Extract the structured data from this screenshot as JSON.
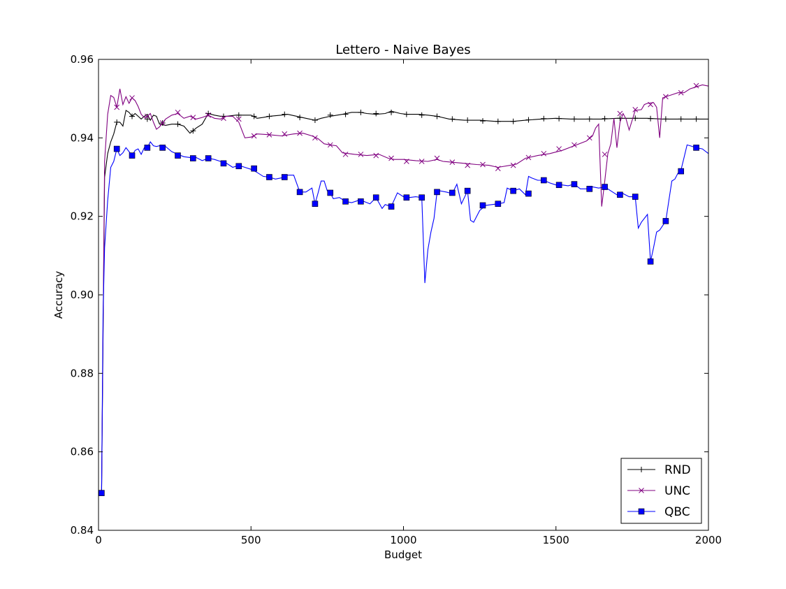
{
  "chart_data": {
    "type": "line",
    "title": "Lettero - Naive Bayes",
    "xlabel": "Budget",
    "ylabel": "Accuracy",
    "xlim": [
      0,
      2000
    ],
    "ylim": [
      0.84,
      0.96
    ],
    "xticks": [
      0,
      500,
      1000,
      1500,
      2000
    ],
    "xtick_labels": [
      "0",
      "500",
      "1000",
      "1500",
      "2000"
    ],
    "yticks": [
      0.84,
      0.86,
      0.88,
      0.9,
      0.92,
      0.94,
      0.96
    ],
    "ytick_labels": [
      "0.84",
      "0.86",
      "0.88",
      "0.90",
      "0.92",
      "0.94",
      "0.96"
    ],
    "grid": false,
    "legend_position": "bottom-right",
    "series": [
      {
        "name": "RND",
        "color": "#000000",
        "marker": "plus",
        "x": [
          10,
          20,
          30,
          40,
          50,
          60,
          70,
          80,
          90,
          100,
          110,
          120,
          130,
          140,
          150,
          160,
          170,
          180,
          190,
          200,
          220,
          240,
          260,
          280,
          300,
          310,
          320,
          340,
          360,
          380,
          400,
          420,
          450,
          500,
          520,
          540,
          560,
          600,
          620,
          650,
          680,
          710,
          730,
          760,
          800,
          830,
          860,
          880,
          910,
          940,
          960,
          990,
          1010,
          1050,
          1080,
          1110,
          1150,
          1200,
          1250,
          1300,
          1330,
          1360,
          1400,
          1450,
          1500,
          1550,
          1600,
          1650,
          1700,
          1750,
          1800,
          1850,
          1900,
          1950,
          2000
        ],
        "y": [
          0.85,
          0.93,
          0.936,
          0.939,
          0.941,
          0.944,
          0.944,
          0.943,
          0.947,
          0.9465,
          0.9455,
          0.9462,
          0.9455,
          0.9448,
          0.9455,
          0.946,
          0.9445,
          0.9458,
          0.9455,
          0.9435,
          0.9432,
          0.9435,
          0.9435,
          0.943,
          0.9412,
          0.9418,
          0.9425,
          0.9435,
          0.9462,
          0.9458,
          0.9455,
          0.9455,
          0.9458,
          0.9458,
          0.945,
          0.9452,
          0.9455,
          0.9458,
          0.946,
          0.9455,
          0.945,
          0.9445,
          0.945,
          0.9455,
          0.946,
          0.9465,
          0.9465,
          0.9462,
          0.946,
          0.9462,
          0.9468,
          0.9462,
          0.946,
          0.946,
          0.9458,
          0.9455,
          0.9448,
          0.9445,
          0.9445,
          0.9442,
          0.9442,
          0.9442,
          0.9445,
          0.9448,
          0.945,
          0.9448,
          0.9448,
          0.9448,
          0.945,
          0.945,
          0.945,
          0.9448,
          0.9448,
          0.9448,
          0.9448
        ],
        "marker_x": [
          60,
          110,
          160,
          210,
          260,
          310,
          360,
          410,
          460,
          510,
          560,
          610,
          660,
          710,
          760,
          810,
          860,
          910,
          960,
          1010,
          1060,
          1110,
          1160,
          1210,
          1260,
          1310,
          1360,
          1410,
          1460,
          1510,
          1560,
          1610,
          1660,
          1710,
          1760,
          1810,
          1860,
          1910,
          1960
        ],
        "marker_y": [
          0.944,
          0.9455,
          0.9448,
          0.9438,
          0.9435,
          0.9418,
          0.9462,
          0.9455,
          0.9458,
          0.9455,
          0.9455,
          0.946,
          0.9452,
          0.9445,
          0.9458,
          0.946,
          0.9465,
          0.9462,
          0.9465,
          0.946,
          0.9458,
          0.9455,
          0.9448,
          0.9445,
          0.9443,
          0.9442,
          0.9442,
          0.9446,
          0.9449,
          0.9449,
          0.9448,
          0.9448,
          0.9449,
          0.945,
          0.945,
          0.9449,
          0.9448,
          0.9448,
          0.9448
        ]
      },
      {
        "name": "UNC",
        "color": "#800080",
        "marker": "x",
        "x": [
          10,
          20,
          30,
          40,
          50,
          60,
          70,
          80,
          90,
          100,
          110,
          120,
          130,
          140,
          150,
          160,
          170,
          180,
          190,
          200,
          210,
          220,
          240,
          260,
          280,
          300,
          320,
          340,
          360,
          380,
          400,
          420,
          440,
          460,
          480,
          500,
          520,
          560,
          600,
          640,
          670,
          700,
          720,
          740,
          760,
          780,
          800,
          840,
          880,
          920,
          950,
          970,
          1000,
          1040,
          1080,
          1110,
          1130,
          1160,
          1200,
          1240,
          1280,
          1310,
          1350,
          1370,
          1400,
          1440,
          1480,
          1520,
          1560,
          1600,
          1620,
          1630,
          1640,
          1650,
          1660,
          1670,
          1680,
          1690,
          1700,
          1710,
          1720,
          1730,
          1740,
          1760,
          1780,
          1790,
          1800,
          1820,
          1830,
          1840,
          1850,
          1860,
          1880,
          1900,
          1920,
          1940,
          1960,
          1980,
          2000
        ],
        "y": [
          0.85,
          0.934,
          0.946,
          0.9508,
          0.9503,
          0.9478,
          0.9525,
          0.9485,
          0.9505,
          0.9488,
          0.9502,
          0.9495,
          0.948,
          0.946,
          0.9452,
          0.9455,
          0.9462,
          0.944,
          0.9422,
          0.9428,
          0.9438,
          0.9448,
          0.9458,
          0.9462,
          0.945,
          0.9455,
          0.9448,
          0.9452,
          0.9458,
          0.945,
          0.9448,
          0.9455,
          0.9455,
          0.944,
          0.94,
          0.9402,
          0.941,
          0.9408,
          0.9405,
          0.941,
          0.9412,
          0.9405,
          0.9398,
          0.9385,
          0.9382,
          0.938,
          0.9362,
          0.9358,
          0.9355,
          0.9358,
          0.9348,
          0.9345,
          0.9345,
          0.9342,
          0.934,
          0.9345,
          0.934,
          0.9338,
          0.9335,
          0.9332,
          0.933,
          0.9325,
          0.933,
          0.9333,
          0.9348,
          0.9355,
          0.936,
          0.9368,
          0.938,
          0.9392,
          0.9405,
          0.9425,
          0.9435,
          0.9225,
          0.929,
          0.936,
          0.9385,
          0.945,
          0.9375,
          0.944,
          0.9462,
          0.9448,
          0.942,
          0.947,
          0.9472,
          0.9485,
          0.9488,
          0.949,
          0.9478,
          0.94,
          0.9502,
          0.9505,
          0.951,
          0.9515,
          0.9515,
          0.9525,
          0.953,
          0.9535,
          0.9532
        ],
        "marker_x": [
          60,
          110,
          160,
          210,
          260,
          310,
          360,
          410,
          460,
          510,
          560,
          610,
          660,
          710,
          760,
          810,
          860,
          910,
          960,
          1010,
          1060,
          1110,
          1160,
          1210,
          1260,
          1310,
          1360,
          1410,
          1460,
          1510,
          1560,
          1610,
          1660,
          1710,
          1760,
          1810,
          1860,
          1910,
          1960
        ],
        "marker_y": [
          0.9478,
          0.9502,
          0.9455,
          0.9438,
          0.9465,
          0.9452,
          0.9458,
          0.945,
          0.9448,
          0.9405,
          0.9408,
          0.941,
          0.9412,
          0.94,
          0.9382,
          0.9358,
          0.9358,
          0.9355,
          0.9348,
          0.934,
          0.934,
          0.9348,
          0.9338,
          0.933,
          0.9332,
          0.9322,
          0.933,
          0.935,
          0.936,
          0.9372,
          0.9382,
          0.94,
          0.9358,
          0.9462,
          0.9472,
          0.9485,
          0.9505,
          0.9515,
          0.9533
        ]
      },
      {
        "name": "QBC",
        "color": "#0000ff",
        "marker": "square",
        "x": [
          10,
          15,
          20,
          25,
          30,
          40,
          50,
          60,
          70,
          80,
          90,
          100,
          110,
          120,
          130,
          140,
          150,
          160,
          170,
          180,
          190,
          200,
          210,
          220,
          240,
          260,
          280,
          300,
          320,
          340,
          360,
          380,
          400,
          420,
          440,
          460,
          480,
          500,
          520,
          540,
          560,
          580,
          600,
          620,
          640,
          660,
          680,
          700,
          710,
          720,
          730,
          740,
          750,
          760,
          770,
          790,
          810,
          830,
          850,
          870,
          890,
          910,
          930,
          940,
          960,
          980,
          1000,
          1020,
          1040,
          1060,
          1070,
          1080,
          1090,
          1100,
          1110,
          1120,
          1140,
          1160,
          1175,
          1190,
          1210,
          1220,
          1230,
          1250,
          1270,
          1290,
          1310,
          1330,
          1340,
          1360,
          1380,
          1400,
          1410,
          1420,
          1440,
          1460,
          1480,
          1500,
          1520,
          1540,
          1560,
          1580,
          1600,
          1620,
          1640,
          1660,
          1680,
          1700,
          1720,
          1740,
          1760,
          1770,
          1780,
          1800,
          1810,
          1820,
          1830,
          1840,
          1860,
          1870,
          1880,
          1890,
          1900,
          1910,
          1920,
          1930,
          1940,
          1960,
          1980,
          2000
        ],
        "y": [
          0.8495,
          0.895,
          0.912,
          0.918,
          0.924,
          0.9325,
          0.934,
          0.9372,
          0.9355,
          0.9362,
          0.9375,
          0.9365,
          0.9355,
          0.9368,
          0.9372,
          0.9358,
          0.9375,
          0.9375,
          0.939,
          0.938,
          0.9378,
          0.938,
          0.9375,
          0.9378,
          0.9365,
          0.9358,
          0.9352,
          0.935,
          0.935,
          0.9342,
          0.9348,
          0.9345,
          0.934,
          0.9335,
          0.9325,
          0.933,
          0.9325,
          0.932,
          0.9312,
          0.9302,
          0.93,
          0.9295,
          0.9298,
          0.9305,
          0.9305,
          0.9262,
          0.9262,
          0.9272,
          0.9232,
          0.926,
          0.929,
          0.929,
          0.9265,
          0.926,
          0.9245,
          0.9248,
          0.9238,
          0.9235,
          0.924,
          0.9238,
          0.9232,
          0.9248,
          0.922,
          0.923,
          0.9225,
          0.926,
          0.925,
          0.9248,
          0.925,
          0.9248,
          0.903,
          0.9115,
          0.916,
          0.9195,
          0.9262,
          0.9265,
          0.9262,
          0.9258,
          0.9282,
          0.9232,
          0.9265,
          0.919,
          0.9185,
          0.9215,
          0.9228,
          0.923,
          0.9232,
          0.9235,
          0.9272,
          0.9265,
          0.927,
          0.9255,
          0.9302,
          0.9298,
          0.9292,
          0.9292,
          0.9285,
          0.928,
          0.928,
          0.9278,
          0.9282,
          0.927,
          0.927,
          0.9275,
          0.9272,
          0.9275,
          0.9265,
          0.9255,
          0.9258,
          0.925,
          0.925,
          0.917,
          0.9185,
          0.9205,
          0.9085,
          0.912,
          0.916,
          0.9165,
          0.9188,
          0.924,
          0.929,
          0.9295,
          0.931,
          0.9318,
          0.935,
          0.9382,
          0.938,
          0.9375,
          0.9372,
          0.936
        ],
        "marker_x": [
          10,
          60,
          110,
          160,
          210,
          260,
          310,
          360,
          410,
          460,
          510,
          560,
          610,
          660,
          710,
          760,
          810,
          860,
          910,
          960,
          1010,
          1060,
          1110,
          1160,
          1210,
          1260,
          1310,
          1360,
          1410,
          1460,
          1510,
          1560,
          1610,
          1660,
          1710,
          1760,
          1810,
          1860,
          1910,
          1960
        ],
        "marker_y": [
          0.8495,
          0.9372,
          0.9355,
          0.9375,
          0.9375,
          0.9355,
          0.9348,
          0.9348,
          0.9335,
          0.9328,
          0.9322,
          0.93,
          0.93,
          0.9262,
          0.9232,
          0.926,
          0.9238,
          0.9238,
          0.9248,
          0.9225,
          0.9248,
          0.9248,
          0.9262,
          0.926,
          0.9265,
          0.9228,
          0.9232,
          0.9265,
          0.9258,
          0.9292,
          0.928,
          0.9282,
          0.927,
          0.9275,
          0.9255,
          0.925,
          0.9085,
          0.9188,
          0.9315,
          0.9375
        ]
      }
    ]
  }
}
